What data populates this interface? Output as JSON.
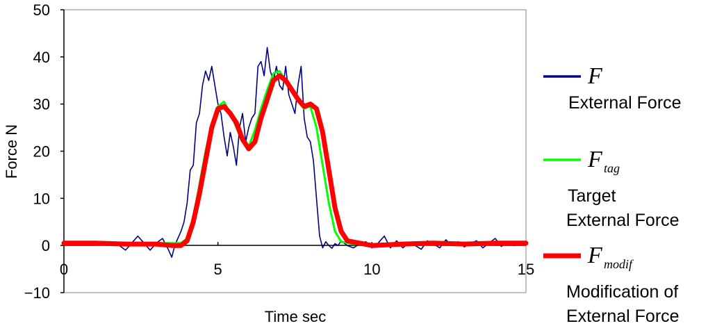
{
  "chart_data": {
    "type": "line",
    "title": "",
    "xlabel": "Time sec",
    "ylabel": "Force N",
    "xlim": [
      0,
      15
    ],
    "ylim": [
      -10,
      50
    ],
    "grid": false,
    "legend_position": "right",
    "x_ticks": [
      "0",
      "5",
      "10",
      "15"
    ],
    "y_ticks": [
      "50",
      "40",
      "30",
      "20",
      "10",
      "0",
      "−10"
    ],
    "series": [
      {
        "key": "F",
        "symbol": "F",
        "subscript": "",
        "description": "External Force",
        "color": "#000080",
        "x": [
          0,
          1,
          1.8,
          2.0,
          2.2,
          2.4,
          2.6,
          2.8,
          3.0,
          3.2,
          3.4,
          3.5,
          3.6,
          3.7,
          3.8,
          3.9,
          4.0,
          4.1,
          4.2,
          4.3,
          4.4,
          4.5,
          4.6,
          4.7,
          4.8,
          4.9,
          5.0,
          5.1,
          5.2,
          5.3,
          5.4,
          5.5,
          5.6,
          5.7,
          5.8,
          5.9,
          6.0,
          6.1,
          6.2,
          6.3,
          6.4,
          6.5,
          6.6,
          6.7,
          6.8,
          6.9,
          7.0,
          7.1,
          7.2,
          7.3,
          7.4,
          7.5,
          7.6,
          7.7,
          7.8,
          7.9,
          8.0,
          8.1,
          8.2,
          8.3,
          8.4,
          8.5,
          8.6,
          8.7,
          8.8,
          8.9,
          9.0,
          9.2,
          9.4,
          9.6,
          9.8,
          10.0,
          10.2,
          10.4,
          10.6,
          10.8,
          11.0,
          11.2,
          11.4,
          11.6,
          11.8,
          12.0,
          12.2,
          12.4,
          12.6,
          12.8,
          13.0,
          13.2,
          13.4,
          13.6,
          13.8,
          14.0,
          14.2,
          14.4,
          14.6,
          14.8,
          15.0
        ],
        "y": [
          0.5,
          0.4,
          0.0,
          -1.0,
          0.5,
          2.0,
          0.5,
          -1.0,
          0.5,
          1.5,
          -1.0,
          -2.5,
          0.0,
          1.5,
          3.0,
          5.0,
          9.0,
          16.0,
          17.0,
          26.0,
          28.0,
          34.0,
          37.0,
          35.0,
          38.0,
          34.0,
          30.0,
          28.0,
          23.0,
          19.0,
          24.0,
          21.0,
          17.0,
          25.0,
          28.0,
          22.0,
          25.0,
          27.0,
          28.0,
          38.0,
          39.0,
          36.0,
          42.0,
          37.0,
          35.0,
          38.0,
          34.0,
          33.0,
          38.0,
          32.0,
          30.0,
          28.0,
          34.0,
          38.0,
          27.0,
          23.0,
          22.0,
          18.0,
          10.0,
          2.0,
          -0.5,
          0.8,
          0.0,
          -0.6,
          0.4,
          0.0,
          1.0,
          0.0,
          -0.5,
          0.3,
          0.8,
          -0.5,
          0.5,
          2.0,
          -0.5,
          1.0,
          -0.5,
          0.5,
          0.0,
          -0.8,
          1.0,
          0.3,
          -0.5,
          1.2,
          0.0,
          0.8,
          -0.3,
          0.5,
          1.0,
          -0.5,
          0.5,
          1.5,
          -0.2,
          0.8,
          0.0,
          0.5,
          0.5
        ]
      },
      {
        "key": "Ftag",
        "symbol": "F",
        "subscript": "tag",
        "description": "Target\nExternal Force",
        "color": "#00ff00",
        "x": [
          0,
          3.8,
          4.0,
          4.2,
          4.4,
          4.6,
          4.8,
          5.0,
          5.2,
          5.4,
          5.6,
          5.8,
          6.0,
          6.2,
          6.4,
          6.6,
          6.8,
          7.0,
          7.2,
          7.4,
          7.6,
          7.8,
          8.0,
          8.2,
          8.4,
          8.6,
          8.8,
          9.0,
          9.4,
          10.0,
          11.0,
          12.0,
          13.0,
          14.0,
          15.0
        ],
        "y": [
          0.5,
          0.5,
          1.5,
          6.0,
          13.0,
          20.0,
          26.0,
          29.5,
          30.5,
          28.0,
          25.0,
          22.0,
          21.0,
          24.5,
          29.0,
          33.0,
          36.5,
          37.0,
          35.0,
          33.0,
          30.5,
          29.0,
          29.5,
          25.0,
          17.0,
          9.0,
          3.0,
          0.8,
          0.3,
          0.3,
          0.5,
          0.4,
          0.3,
          0.3,
          0.3
        ]
      },
      {
        "key": "Fmodif",
        "symbol": "F",
        "subscript": "modif",
        "description": "Modification of\nExternal Force",
        "color": "#ff0000",
        "x": [
          0,
          1,
          2,
          3,
          3.5,
          3.8,
          4.0,
          4.2,
          4.4,
          4.6,
          4.8,
          5.0,
          5.2,
          5.4,
          5.6,
          5.8,
          6.0,
          6.2,
          6.4,
          6.6,
          6.8,
          7.0,
          7.2,
          7.4,
          7.6,
          7.8,
          8.0,
          8.2,
          8.4,
          8.6,
          8.8,
          9.0,
          9.2,
          9.6,
          10.0,
          11.0,
          12.0,
          13.0,
          14.0,
          15.0
        ],
        "y": [
          0.5,
          0.5,
          0.3,
          0.3,
          0.0,
          0.0,
          1.0,
          5.0,
          11.0,
          18.0,
          25.0,
          29.0,
          29.5,
          28.0,
          26.0,
          22.5,
          20.5,
          22.0,
          27.0,
          31.0,
          35.0,
          36.0,
          35.0,
          33.0,
          31.0,
          29.5,
          30.0,
          29.0,
          24.0,
          16.0,
          8.0,
          3.0,
          1.0,
          0.5,
          0.0,
          0.3,
          0.5,
          0.3,
          0.5,
          0.5
        ]
      }
    ]
  }
}
